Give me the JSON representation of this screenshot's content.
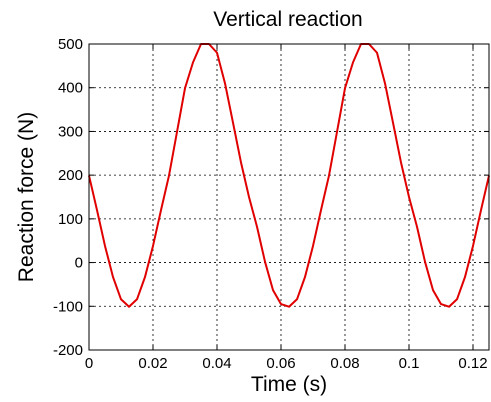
{
  "chart_data": {
    "type": "line",
    "title": "Vertical reaction",
    "xlabel": "Time (s)",
    "ylabel": "Reaction force (N)",
    "xlim": [
      0,
      0.125
    ],
    "ylim": [
      -200,
      500
    ],
    "xticks": [
      0,
      0.02,
      0.04,
      0.06,
      0.08,
      0.1,
      0.12
    ],
    "xtick_labels": [
      "0",
      "0.02",
      "0.04",
      "0.06",
      "0.08",
      "0.1",
      "0.12"
    ],
    "yticks": [
      -200,
      -100,
      0,
      100,
      200,
      300,
      400,
      500
    ],
    "ytick_labels": [
      "-200",
      "-100",
      "0",
      "100",
      "200",
      "300",
      "400",
      "500"
    ],
    "grid": true,
    "series": [
      {
        "color": "#e00000",
        "x": [
          0,
          0.0025,
          0.005,
          0.0075,
          0.01,
          0.0125,
          0.015,
          0.0175,
          0.02,
          0.0225,
          0.025,
          0.0275,
          0.03,
          0.0325,
          0.035,
          0.0375,
          0.04,
          0.0425,
          0.045,
          0.0475,
          0.05,
          0.0525,
          0.055,
          0.0575,
          0.06,
          0.0625,
          0.065,
          0.0675,
          0.07,
          0.0725,
          0.075,
          0.0775,
          0.08,
          0.0825,
          0.085,
          0.0875,
          0.09,
          0.0925,
          0.095,
          0.0975,
          0.1,
          0.1025,
          0.105,
          0.1075,
          0.11,
          0.1125,
          0.115,
          0.1175,
          0.12,
          0.1225,
          0.125
        ],
        "y": [
          199,
          120,
          38,
          -33,
          -84,
          -101,
          -84,
          -33,
          38,
          120,
          199,
          299,
          399,
          458,
          500,
          500,
          480,
          410,
          320,
          229,
          150,
          82,
          2,
          -63,
          -95,
          -101,
          -84,
          -33,
          38,
          120,
          199,
          299,
          399,
          458,
          500,
          500,
          480,
          410,
          320,
          229,
          150,
          82,
          2,
          -63,
          -95,
          -101,
          -84,
          -33,
          38,
          120,
          199
        ]
      }
    ]
  }
}
